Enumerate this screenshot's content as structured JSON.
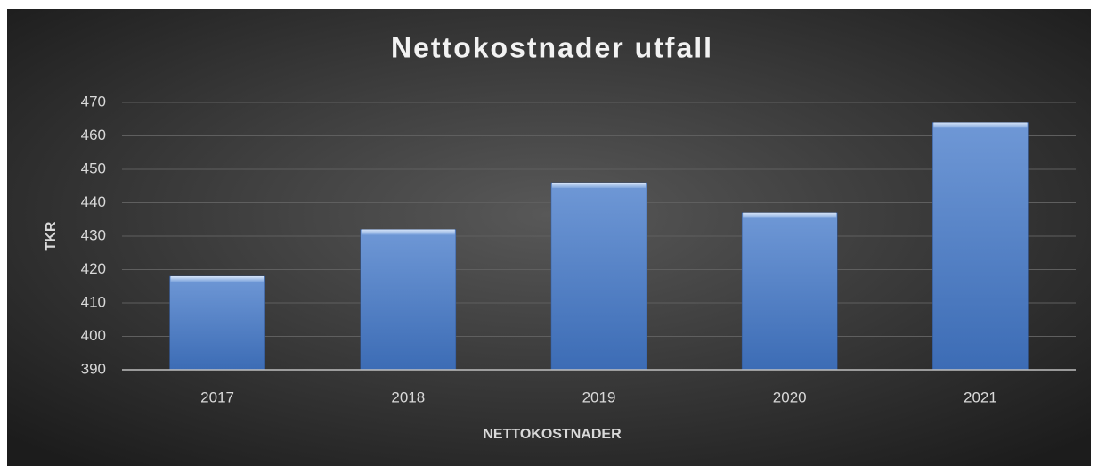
{
  "chart_data": {
    "type": "bar",
    "title": "Nettokostnader utfall",
    "x_label": "NETTOKOSTNADER",
    "y_label": "TKR",
    "categories": [
      "2017",
      "2018",
      "2019",
      "2020",
      "2021"
    ],
    "values": [
      418,
      432,
      446,
      437,
      464
    ],
    "color": "#4f81c9",
    "ylim": [
      390,
      470
    ],
    "yticks": [
      390,
      400,
      410,
      420,
      430,
      440,
      450,
      460,
      470
    ],
    "grid": true
  }
}
